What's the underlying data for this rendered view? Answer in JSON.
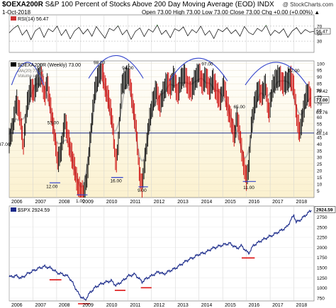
{
  "header": {
    "symbol": "$OEXA200R",
    "description": "S&P 100 Percent of Stocks Above 200 Day Moving Average (EOD) INDX",
    "watermark": "@ StockCharts.com",
    "date": "1-Oct-2018",
    "quote": "Open 73.00  High 73.00  Low 73.00  Close 73.00  Chg +0.00 (+0.00%) ▲"
  },
  "colors": {
    "price_line": "#000000",
    "up_bar": "#000000",
    "down_bar": "#cc0000",
    "ma_line": "#b0b0b0",
    "arc": "#3344cc",
    "support": "#1a2a8a",
    "spx_line": "#1a2a8a",
    "spx_lows": "#dd1111",
    "panel_bg_top": "#ffffff",
    "panel_bg_bottom": "#fbf1cf",
    "rsi_fill": "#3a8a3a"
  },
  "chart_data": [
    {
      "type": "line",
      "title": "RSI(14) 56.47",
      "y_ticks": [
        30,
        50,
        70
      ],
      "ylim": [
        0,
        100
      ],
      "bands": [
        30,
        70
      ],
      "right_labels": [
        "56.47"
      ],
      "values": [
        52,
        64,
        72,
        46,
        60,
        34,
        58,
        66,
        40,
        63,
        55,
        70,
        45,
        61,
        36,
        57,
        67,
        49,
        62,
        43,
        69,
        53,
        38,
        64,
        58,
        71,
        47,
        60,
        35,
        56,
        65,
        42,
        62,
        54,
        73,
        48,
        59,
        39,
        63,
        57,
        68,
        44,
        61,
        52,
        70,
        46,
        58,
        37,
        62,
        55,
        66,
        50,
        60,
        43,
        69,
        53,
        47,
        64,
        56,
        72,
        45,
        59,
        51,
        63,
        40,
        57,
        66,
        49,
        61,
        54,
        56
      ]
    },
    {
      "type": "bar",
      "title": "$OEXA200R (Weekly) 73.00",
      "legend": [
        "MA(20) 73.44",
        "Volume undef"
      ],
      "x_ticks": [
        "2006",
        "2007",
        "2008",
        "2009",
        "2010",
        "2011",
        "2012",
        "2013",
        "2014",
        "2015",
        "2016",
        "2017",
        "2018"
      ],
      "y_ticks": [
        5,
        10,
        15,
        20,
        25,
        30,
        35,
        40,
        45,
        50,
        55,
        60,
        65,
        70,
        75,
        80,
        85,
        90,
        95,
        100
      ],
      "ylim": [
        0,
        102
      ],
      "right_labels": [
        "79.42",
        "73.00",
        "63.76",
        "48.14"
      ],
      "support_level": 48.14,
      "annotations": [
        {
          "text": "37.00",
          "x": 2005.8,
          "y": 37
        },
        {
          "text": "53.00",
          "x": 2007.85,
          "y": 53
        },
        {
          "text": "12.00",
          "x": 2007.8,
          "y": 12
        },
        {
          "text": "1.00",
          "x": 2009.0,
          "y": 1
        },
        {
          "text": "98.00",
          "x": 2009.8,
          "y": 98
        },
        {
          "text": "94.00",
          "x": 2011.0,
          "y": 94
        },
        {
          "text": "16.00",
          "x": 2010.5,
          "y": 16
        },
        {
          "text": "9.00",
          "x": 2011.6,
          "y": 9
        },
        {
          "text": "97.00",
          "x": 2014.35,
          "y": 97
        },
        {
          "text": "65.00",
          "x": 2015.7,
          "y": 65
        },
        {
          "text": "11.00",
          "x": 2016.1,
          "y": 11
        },
        {
          "text": "92.00",
          "x": 2018.0,
          "y": 92
        }
      ],
      "series": [
        {
          "name": "OEXA200R",
          "x": [
            2006.0,
            2006.15,
            2006.3,
            2006.45,
            2006.6,
            2006.75,
            2006.9,
            2007.05,
            2007.2,
            2007.35,
            2007.5,
            2007.6,
            2007.75,
            2007.9,
            2008.05,
            2008.2,
            2008.35,
            2008.5,
            2008.6,
            2008.75,
            2008.9,
            2009.0,
            2009.15,
            2009.3,
            2009.45,
            2009.6,
            2009.75,
            2009.9,
            2010.05,
            2010.2,
            2010.35,
            2010.5,
            2010.6,
            2010.75,
            2010.9,
            2011.05,
            2011.2,
            2011.35,
            2011.5,
            2011.6,
            2011.75,
            2011.9,
            2012.05,
            2012.2,
            2012.35,
            2012.5,
            2012.65,
            2012.8,
            2012.95,
            2013.1,
            2013.25,
            2013.4,
            2013.55,
            2013.7,
            2013.85,
            2014.0,
            2014.15,
            2014.3,
            2014.45,
            2014.6,
            2014.75,
            2014.9,
            2015.05,
            2015.2,
            2015.35,
            2015.5,
            2015.6,
            2015.7,
            2015.85,
            2016.0,
            2016.1,
            2016.2,
            2016.35,
            2016.5,
            2016.65,
            2016.8,
            2016.95,
            2017.1,
            2017.25,
            2017.4,
            2017.55,
            2017.7,
            2017.85,
            2018.0,
            2018.15,
            2018.25,
            2018.4,
            2018.5,
            2018.6,
            2018.75
          ],
          "values": [
            42,
            52,
            72,
            62,
            38,
            68,
            82,
            78,
            88,
            92,
            75,
            86,
            66,
            48,
            26,
            36,
            58,
            42,
            34,
            22,
            8,
            4,
            2,
            18,
            50,
            78,
            90,
            96,
            82,
            72,
            56,
            24,
            40,
            84,
            88,
            92,
            70,
            52,
            16,
            8,
            32,
            56,
            70,
            80,
            68,
            78,
            86,
            82,
            90,
            76,
            88,
            92,
            82,
            80,
            88,
            94,
            84,
            90,
            80,
            88,
            78,
            72,
            84,
            68,
            58,
            44,
            60,
            50,
            28,
            14,
            22,
            52,
            70,
            80,
            76,
            84,
            62,
            82,
            88,
            90,
            84,
            86,
            90,
            82,
            56,
            48,
            64,
            74,
            78,
            73
          ]
        }
      ]
    },
    {
      "type": "line",
      "title": "$SPX 2924.59",
      "x_ticks": [
        "2006",
        "2007",
        "2008",
        "2009",
        "2010",
        "2011",
        "2012",
        "2013",
        "2014",
        "2015",
        "2016",
        "2017",
        "2018"
      ],
      "y_ticks": [
        750,
        1000,
        1250,
        1500,
        1750,
        2000,
        2250,
        2500,
        2750
      ],
      "ylim": [
        680,
        3020
      ],
      "right_labels": [
        "2924.59"
      ],
      "lows": [
        {
          "x1": 2007.7,
          "x2": 2008.2,
          "y": 1270
        },
        {
          "x1": 2008.9,
          "x2": 2009.4,
          "y": 680
        },
        {
          "x1": 2010.45,
          "x2": 2010.9,
          "y": 1010
        },
        {
          "x1": 2011.55,
          "x2": 2012.0,
          "y": 1075
        },
        {
          "x1": 2015.8,
          "x2": 2016.35,
          "y": 1810
        }
      ],
      "series": [
        {
          "name": "$SPX",
          "x": [
            2006.0,
            2006.3,
            2006.5,
            2006.8,
            2007.0,
            2007.3,
            2007.5,
            2007.8,
            2008.0,
            2008.3,
            2008.5,
            2008.7,
            2008.9,
            2009.0,
            2009.2,
            2009.4,
            2009.6,
            2009.8,
            2010.0,
            2010.3,
            2010.5,
            2010.8,
            2011.0,
            2011.3,
            2011.6,
            2011.8,
            2012.0,
            2012.3,
            2012.5,
            2012.8,
            2013.0,
            2013.3,
            2013.5,
            2013.8,
            2014.0,
            2014.3,
            2014.5,
            2014.8,
            2015.0,
            2015.3,
            2015.6,
            2015.8,
            2016.0,
            2016.1,
            2016.3,
            2016.6,
            2016.9,
            2017.1,
            2017.4,
            2017.7,
            2018.0,
            2018.1,
            2018.3,
            2018.5,
            2018.75
          ],
          "values": [
            1270,
            1300,
            1240,
            1360,
            1420,
            1500,
            1530,
            1480,
            1380,
            1330,
            1280,
            1100,
            880,
            800,
            700,
            880,
            1000,
            1080,
            1130,
            1180,
            1060,
            1180,
            1290,
            1340,
            1150,
            1240,
            1300,
            1400,
            1340,
            1430,
            1480,
            1600,
            1680,
            1760,
            1830,
            1880,
            1960,
            2020,
            2060,
            2100,
            1980,
            2040,
            1900,
            1860,
            2050,
            2160,
            2250,
            2300,
            2400,
            2500,
            2800,
            2620,
            2690,
            2800,
            2924.59
          ]
        }
      ]
    }
  ]
}
